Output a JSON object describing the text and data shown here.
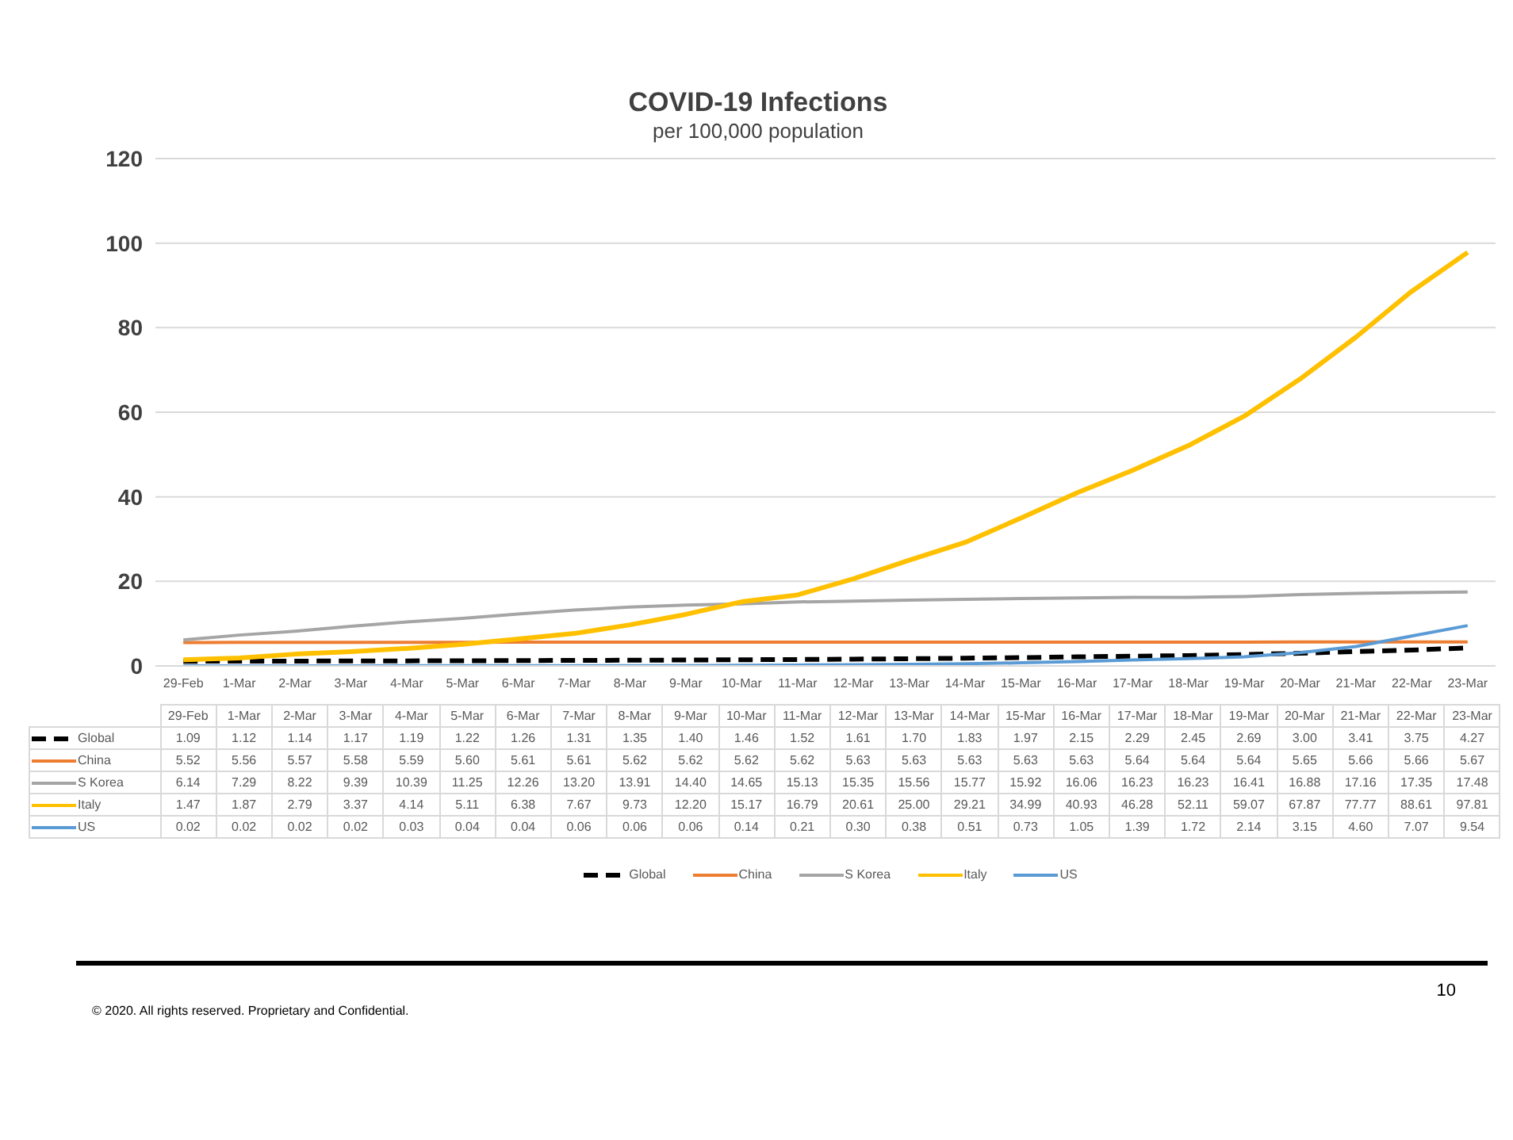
{
  "chart_data": {
    "type": "line",
    "title": "COVID-19 Infections",
    "subtitle": "per 100,000 population",
    "categories": [
      "29-Feb",
      "1-Mar",
      "2-Mar",
      "3-Mar",
      "4-Mar",
      "5-Mar",
      "6-Mar",
      "7-Mar",
      "8-Mar",
      "9-Mar",
      "10-Mar",
      "11-Mar",
      "12-Mar",
      "13-Mar",
      "14-Mar",
      "15-Mar",
      "16-Mar",
      "17-Mar",
      "18-Mar",
      "19-Mar",
      "20-Mar",
      "21-Mar",
      "22-Mar",
      "23-Mar"
    ],
    "series": [
      {
        "name": "Global",
        "color": "#000000",
        "line_style": "dashed",
        "values": [
          1.09,
          1.12,
          1.14,
          1.17,
          1.19,
          1.22,
          1.26,
          1.31,
          1.35,
          1.4,
          1.46,
          1.52,
          1.61,
          1.7,
          1.83,
          1.97,
          2.15,
          2.29,
          2.45,
          2.69,
          3.0,
          3.41,
          3.75,
          4.27
        ],
        "value_labels": [
          "1.09",
          "1.12",
          "1.14",
          "1.17",
          "1.19",
          "1.22",
          "1.26",
          "1.31",
          "1.35",
          "1.40",
          "1.46",
          "1.52",
          "1.61",
          "1.70",
          "1.83",
          "1.97",
          "2.15",
          "2.29",
          "2.45",
          "2.69",
          "3.00",
          "3.41",
          "3.75",
          "4.27"
        ]
      },
      {
        "name": "China",
        "color": "#ed7d31",
        "values": [
          5.52,
          5.56,
          5.57,
          5.58,
          5.59,
          5.6,
          5.61,
          5.61,
          5.62,
          5.62,
          5.62,
          5.62,
          5.63,
          5.63,
          5.63,
          5.63,
          5.63,
          5.64,
          5.64,
          5.64,
          5.65,
          5.66,
          5.66,
          5.67
        ],
        "value_labels": [
          "5.52",
          "5.56",
          "5.57",
          "5.58",
          "5.59",
          "5.60",
          "5.61",
          "5.61",
          "5.62",
          "5.62",
          "5.62",
          "5.62",
          "5.63",
          "5.63",
          "5.63",
          "5.63",
          "5.63",
          "5.64",
          "5.64",
          "5.64",
          "5.65",
          "5.66",
          "5.66",
          "5.67"
        ]
      },
      {
        "name": "S Korea",
        "color": "#a5a5a5",
        "values": [
          6.14,
          7.29,
          8.22,
          9.39,
          10.39,
          11.25,
          12.26,
          13.2,
          13.91,
          14.4,
          14.65,
          15.13,
          15.35,
          15.56,
          15.77,
          15.92,
          16.06,
          16.23,
          16.23,
          16.41,
          16.88,
          17.16,
          17.35,
          17.48
        ],
        "value_labels": [
          "6.14",
          "7.29",
          "8.22",
          "9.39",
          "10.39",
          "11.25",
          "12.26",
          "13.20",
          "13.91",
          "14.40",
          "14.65",
          "15.13",
          "15.35",
          "15.56",
          "15.77",
          "15.92",
          "16.06",
          "16.23",
          "16.23",
          "16.41",
          "16.88",
          "17.16",
          "17.35",
          "17.48"
        ]
      },
      {
        "name": "Italy",
        "color": "#ffc000",
        "values": [
          1.47,
          1.87,
          2.79,
          3.37,
          4.14,
          5.11,
          6.38,
          7.67,
          9.73,
          12.2,
          15.17,
          16.79,
          20.61,
          25.0,
          29.21,
          34.99,
          40.93,
          46.28,
          52.11,
          59.07,
          67.87,
          77.77,
          88.61,
          97.81
        ],
        "value_labels": [
          "1.47",
          "1.87",
          "2.79",
          "3.37",
          "4.14",
          "5.11",
          "6.38",
          "7.67",
          "9.73",
          "12.20",
          "15.17",
          "16.79",
          "20.61",
          "25.00",
          "29.21",
          "34.99",
          "40.93",
          "46.28",
          "52.11",
          "59.07",
          "67.87",
          "77.77",
          "88.61",
          "97.81"
        ]
      },
      {
        "name": "US",
        "color": "#5b9bd5",
        "values": [
          0.02,
          0.02,
          0.02,
          0.02,
          0.03,
          0.04,
          0.04,
          0.06,
          0.06,
          0.06,
          0.14,
          0.21,
          0.3,
          0.38,
          0.51,
          0.73,
          1.05,
          1.39,
          1.72,
          2.14,
          3.15,
          4.6,
          7.07,
          9.54
        ],
        "value_labels": [
          "0.02",
          "0.02",
          "0.02",
          "0.02",
          "0.03",
          "0.04",
          "0.04",
          "0.06",
          "0.06",
          "0.06",
          "0.14",
          "0.21",
          "0.30",
          "0.38",
          "0.51",
          "0.73",
          "1.05",
          "1.39",
          "1.72",
          "2.14",
          "3.15",
          "4.60",
          "7.07",
          "9.54"
        ]
      }
    ],
    "ylim": [
      0,
      120
    ],
    "yticks": [
      0,
      20,
      40,
      60,
      80,
      100,
      120
    ],
    "grid": "y",
    "legend": "bottom",
    "marker": "none",
    "annotations": [
      "© 2020. All rights reserved. Proprietary and Confidential.",
      "10"
    ]
  }
}
